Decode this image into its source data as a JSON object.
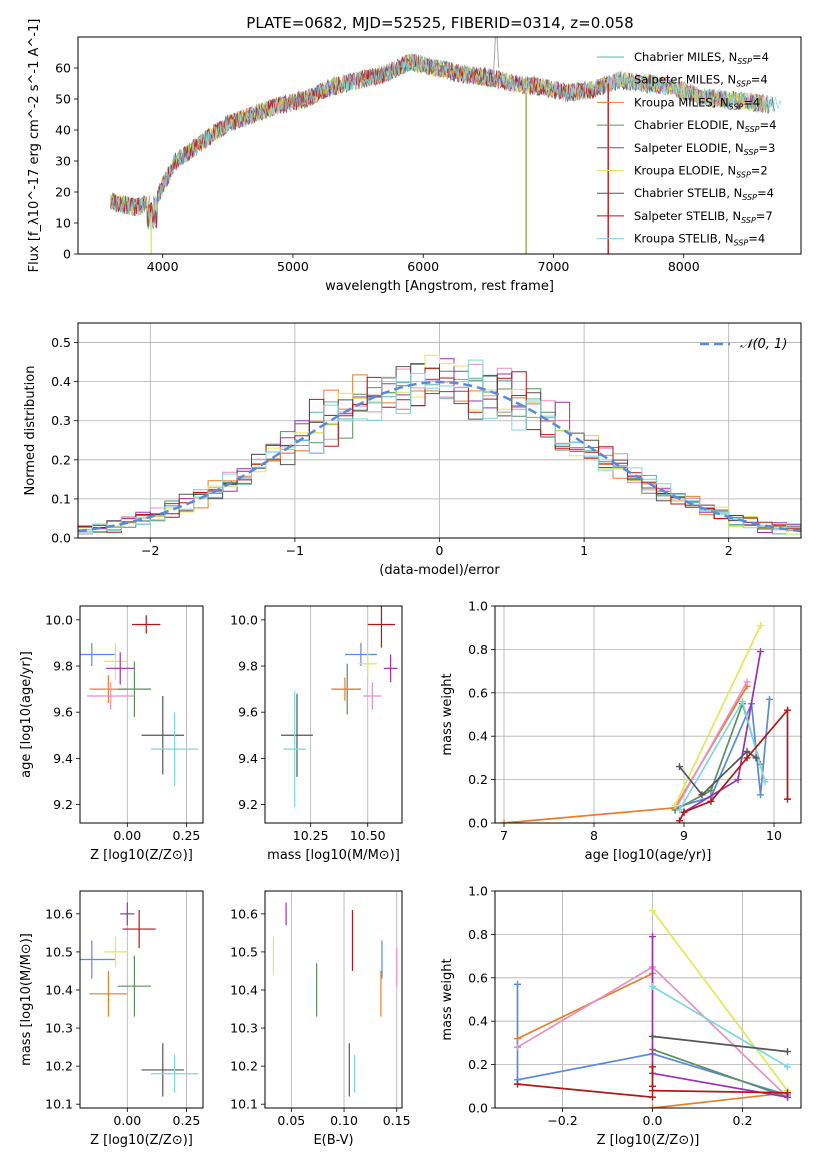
{
  "figure": {
    "title": "PLATE=0682, MJD=52525, FIBERID=0314, z=0.058"
  },
  "series": [
    {
      "name": "Chabrier MILES",
      "nssp": "4",
      "color": "#5ab4a4"
    },
    {
      "name": "Salpeter MILES",
      "nssp": "4",
      "color": "#e88fbf"
    },
    {
      "name": "Kroupa MILES",
      "nssp": "4",
      "color": "#e87e2c"
    },
    {
      "name": "Chabrier ELODIE",
      "nssp": "4",
      "color": "#5e8e5e"
    },
    {
      "name": "Salpeter ELODIE",
      "nssp": "3",
      "color": "#9a32b0"
    },
    {
      "name": "Kroupa ELODIE",
      "nssp": "2",
      "color": "#e0e85c"
    },
    {
      "name": "Chabrier STELIB",
      "nssp": "4",
      "color": "#555555"
    },
    {
      "name": "Salpeter STELIB",
      "nssp": "7",
      "color": "#b01818"
    },
    {
      "name": "Kroupa STELIB",
      "nssp": "4",
      "color": "#7fd6e0"
    }
  ],
  "extra_colors": {
    "blue": "#5b8ad9"
  },
  "chart_data": [
    {
      "id": "spectrum",
      "type": "line",
      "xlabel": "wavelength [Angstrom, rest frame]",
      "ylabel": "Flux [f_λ10^-17 erg cm^-2 s^-1 A^-1]",
      "xlim": [
        3350,
        8900
      ],
      "ylim": [
        0,
        70
      ],
      "xticks": [
        4000,
        5000,
        6000,
        7000,
        8000
      ],
      "yticks": [
        0,
        10,
        20,
        30,
        40,
        50,
        60
      ],
      "legend": "upper-right",
      "continuum": [
        [
          3600,
          17
        ],
        [
          3800,
          15
        ],
        [
          3950,
          18
        ],
        [
          4100,
          30
        ],
        [
          4300,
          36
        ],
        [
          4500,
          42
        ],
        [
          4700,
          45
        ],
        [
          4900,
          48
        ],
        [
          5100,
          50
        ],
        [
          5300,
          54
        ],
        [
          5500,
          56
        ],
        [
          5700,
          58
        ],
        [
          5900,
          62
        ],
        [
          6100,
          60
        ],
        [
          6300,
          58
        ],
        [
          6500,
          57
        ],
        [
          6700,
          55
        ],
        [
          6900,
          54
        ],
        [
          7100,
          52
        ],
        [
          7300,
          53
        ],
        [
          7500,
          56
        ],
        [
          7700,
          55
        ],
        [
          7900,
          54
        ],
        [
          8100,
          51
        ],
        [
          8300,
          50
        ],
        [
          8500,
          49
        ],
        [
          8700,
          48
        ]
      ]
    },
    {
      "id": "residuals",
      "type": "histogram",
      "xlabel": "(data-model)/error",
      "ylabel": "Normed distribution",
      "xlim": [
        -2.5,
        2.5
      ],
      "ylim": [
        0,
        0.55
      ],
      "xticks": [
        -2,
        -1,
        0,
        1,
        2
      ],
      "yticks": [
        0.0,
        0.1,
        0.2,
        0.3,
        0.4,
        0.5
      ],
      "bin_width": 0.1,
      "gaussian_label": "𝒩(0, 1)",
      "grid": true,
      "legend": "upper-right"
    },
    {
      "id": "age_vs_Z",
      "type": "scatter",
      "xlabel": "Z [log10(Z/Z⊙)]",
      "ylabel": "age [log10(age/yr)]",
      "xlim": [
        -0.2,
        0.32
      ],
      "ylim": [
        9.12,
        10.06
      ],
      "xticks": [
        0.0,
        0.25
      ],
      "yticks": [
        9.2,
        9.4,
        9.6,
        9.8,
        10.0
      ],
      "points": [
        {
          "x": -0.15,
          "y": 9.85,
          "xerr": 0.1,
          "yerr": 0.05,
          "series": "blue"
        },
        {
          "x": -0.08,
          "y": 9.7,
          "xerr": 0.08,
          "yerr": 0.06,
          "series": "Kroupa MILES"
        },
        {
          "x": -0.07,
          "y": 9.67,
          "xerr": 0.1,
          "yerr": 0.06,
          "series": "Salpeter MILES"
        },
        {
          "x": -0.05,
          "y": 9.82,
          "xerr": 0.05,
          "yerr": 0.08,
          "series": "Kroupa ELODIE"
        },
        {
          "x": -0.03,
          "y": 9.79,
          "xerr": 0.06,
          "yerr": 0.07,
          "series": "Salpeter ELODIE"
        },
        {
          "x": 0.03,
          "y": 9.7,
          "xerr": 0.07,
          "yerr": 0.12,
          "series": "Chabrier ELODIE"
        },
        {
          "x": 0.08,
          "y": 9.98,
          "xerr": 0.06,
          "yerr": 0.04,
          "series": "Salpeter STELIB"
        },
        {
          "x": 0.15,
          "y": 9.5,
          "xerr": 0.09,
          "yerr": 0.17,
          "series": "Chabrier STELIB"
        },
        {
          "x": 0.2,
          "y": 9.44,
          "xerr": 0.1,
          "yerr": 0.16,
          "series": "Kroupa STELIB"
        }
      ]
    },
    {
      "id": "age_vs_mass",
      "type": "scatter",
      "xlabel": "mass [log10(M/M⊙)]",
      "ylabel": "",
      "xlim": [
        10.05,
        10.65
      ],
      "ylim": [
        9.12,
        10.06
      ],
      "xticks": [
        10.25,
        10.5
      ],
      "yticks": [
        9.2,
        9.4,
        9.6,
        9.8,
        10.0
      ],
      "points": [
        {
          "x": 10.19,
          "y": 9.5,
          "xerr": 0.07,
          "yerr": 0.18,
          "series": "Chabrier STELIB"
        },
        {
          "x": 10.18,
          "y": 9.44,
          "xerr": 0.05,
          "yerr": 0.25,
          "series": "Kroupa STELIB"
        },
        {
          "x": 10.41,
          "y": 9.7,
          "xerr": 0.06,
          "yerr": 0.11,
          "series": "Chabrier ELODIE"
        },
        {
          "x": 10.4,
          "y": 9.7,
          "xerr": 0.06,
          "yerr": 0.05,
          "series": "Kroupa MILES"
        },
        {
          "x": 10.47,
          "y": 9.85,
          "xerr": 0.07,
          "yerr": 0.05,
          "series": "blue"
        },
        {
          "x": 10.5,
          "y": 9.81,
          "xerr": 0.04,
          "yerr": 0.05,
          "series": "Kroupa ELODIE"
        },
        {
          "x": 10.52,
          "y": 9.67,
          "xerr": 0.04,
          "yerr": 0.06,
          "series": "Salpeter MILES"
        },
        {
          "x": 10.56,
          "y": 9.98,
          "xerr": 0.06,
          "yerr": 0.1,
          "series": "Salpeter STELIB"
        },
        {
          "x": 10.6,
          "y": 9.79,
          "xerr": 0.03,
          "yerr": 0.06,
          "series": "Salpeter ELODIE"
        }
      ]
    },
    {
      "id": "massweight_vs_age",
      "type": "line",
      "xlabel": "age [log10(age/yr)]",
      "ylabel": "mass weight",
      "xlim": [
        6.9,
        10.3
      ],
      "ylim": [
        0,
        1.0
      ],
      "xticks": [
        7,
        8,
        9,
        10
      ],
      "yticks": [
        0.0,
        0.2,
        0.4,
        0.6,
        0.8,
        1.0
      ],
      "grid": true,
      "lines": [
        {
          "series": "blue",
          "pts": [
            [
              8.9,
              0.07
            ],
            [
              9.3,
              0.12
            ],
            [
              9.75,
              0.55
            ],
            [
              9.85,
              0.13
            ],
            [
              9.95,
              0.57
            ]
          ]
        },
        {
          "series": "Kroupa MILES",
          "pts": [
            [
              7.0,
              0.0
            ],
            [
              8.9,
              0.07
            ],
            [
              9.7,
              0.63
            ]
          ]
        },
        {
          "series": "Salpeter MILES",
          "pts": [
            [
              8.9,
              0.06
            ],
            [
              9.7,
              0.65
            ]
          ]
        },
        {
          "series": "Chabrier ELODIE",
          "pts": [
            [
              8.9,
              0.06
            ],
            [
              9.3,
              0.15
            ],
            [
              9.65,
              0.55
            ],
            [
              9.85,
              0.27
            ]
          ]
        },
        {
          "series": "Salpeter ELODIE",
          "pts": [
            [
              9.0,
              0.05
            ],
            [
              9.6,
              0.2
            ],
            [
              9.85,
              0.79
            ]
          ]
        },
        {
          "series": "Kroupa ELODIE",
          "pts": [
            [
              8.9,
              0.08
            ],
            [
              9.85,
              0.91
            ]
          ]
        },
        {
          "series": "Kroupa STELIB",
          "pts": [
            [
              8.95,
              0.06
            ],
            [
              9.65,
              0.56
            ],
            [
              9.9,
              0.19
            ]
          ]
        },
        {
          "series": "Chabrier STELIB",
          "pts": [
            [
              8.95,
              0.26
            ],
            [
              9.2,
              0.13
            ],
            [
              9.7,
              0.33
            ],
            [
              9.8,
              0.3
            ]
          ]
        },
        {
          "series": "Salpeter STELIB",
          "pts": [
            [
              8.95,
              0.01
            ],
            [
              9.0,
              0.05
            ],
            [
              9.3,
              0.1
            ],
            [
              9.7,
              0.3
            ],
            [
              10.15,
              0.52
            ],
            [
              10.15,
              0.11
            ]
          ]
        }
      ]
    },
    {
      "id": "mass_vs_Z",
      "type": "scatter",
      "xlabel": "Z [log10(Z/Z⊙)]",
      "ylabel": "mass [log10(M/M⊙)]",
      "xlim": [
        -0.2,
        0.32
      ],
      "ylim": [
        10.09,
        10.66
      ],
      "xticks": [
        0.0,
        0.25
      ],
      "yticks": [
        10.1,
        10.2,
        10.3,
        10.4,
        10.5,
        10.6
      ],
      "points": [
        {
          "x": -0.15,
          "y": 10.48,
          "xerr": 0.1,
          "yerr": 0.05,
          "series": "blue"
        },
        {
          "x": -0.08,
          "y": 10.39,
          "xerr": 0.08,
          "yerr": 0.06,
          "series": "Kroupa MILES"
        },
        {
          "x": -0.05,
          "y": 10.5,
          "xerr": 0.05,
          "yerr": 0.04,
          "series": "Kroupa ELODIE"
        },
        {
          "x": 0.03,
          "y": 10.41,
          "xerr": 0.07,
          "yerr": 0.08,
          "series": "Chabrier ELODIE"
        },
        {
          "x": 0.0,
          "y": 10.6,
          "xerr": 0.03,
          "yerr": 0.03,
          "series": "Salpeter ELODIE"
        },
        {
          "x": 0.05,
          "y": 10.56,
          "xerr": 0.07,
          "yerr": 0.05,
          "series": "Salpeter STELIB"
        },
        {
          "x": 0.15,
          "y": 10.19,
          "xerr": 0.09,
          "yerr": 0.07,
          "series": "Chabrier STELIB"
        },
        {
          "x": 0.2,
          "y": 10.18,
          "xerr": 0.1,
          "yerr": 0.05,
          "series": "Kroupa STELIB"
        }
      ]
    },
    {
      "id": "mass_vs_ebv",
      "type": "scatter",
      "xlabel": "E(B-V)",
      "ylabel": "",
      "xlim": [
        0.025,
        0.155
      ],
      "ylim": [
        10.09,
        10.66
      ],
      "xticks": [
        0.05,
        0.1,
        0.15
      ],
      "yticks": [
        10.1,
        10.2,
        10.3,
        10.4,
        10.5,
        10.6
      ],
      "points": [
        {
          "x": 0.033,
          "y": 10.49,
          "yerr": 0.05,
          "series": "Kroupa ELODIE"
        },
        {
          "x": 0.045,
          "y": 10.6,
          "yerr": 0.03,
          "series": "Salpeter ELODIE"
        },
        {
          "x": 0.074,
          "y": 10.4,
          "yerr": 0.07,
          "series": "Chabrier ELODIE"
        },
        {
          "x": 0.105,
          "y": 10.19,
          "yerr": 0.07,
          "series": "Chabrier STELIB"
        },
        {
          "x": 0.108,
          "y": 10.53,
          "yerr": 0.08,
          "series": "Salpeter STELIB"
        },
        {
          "x": 0.11,
          "y": 10.18,
          "yerr": 0.05,
          "series": "Kroupa STELIB"
        },
        {
          "x": 0.135,
          "y": 10.39,
          "yerr": 0.06,
          "series": "Kroupa MILES"
        },
        {
          "x": 0.136,
          "y": 10.48,
          "yerr": 0.05,
          "series": "blue"
        },
        {
          "x": 0.15,
          "y": 10.46,
          "yerr": 0.05,
          "series": "Salpeter MILES"
        }
      ]
    },
    {
      "id": "massweight_vs_Z",
      "type": "line",
      "xlabel": "Z [log10(Z/Z⊙)]",
      "ylabel": "mass weight",
      "xlim": [
        -0.35,
        0.33
      ],
      "ylim": [
        0,
        1.0
      ],
      "xticks": [
        -0.2,
        0.0,
        0.2
      ],
      "yticks": [
        0.0,
        0.2,
        0.4,
        0.6,
        0.8,
        1.0
      ],
      "grid": true,
      "lines": [
        {
          "series": "blue",
          "pts": [
            [
              -0.3,
              0.57
            ],
            [
              -0.3,
              0.13
            ],
            [
              0.0,
              0.25
            ],
            [
              0.3,
              0.06
            ]
          ]
        },
        {
          "series": "Kroupa MILES",
          "pts": [
            [
              -0.3,
              0.32
            ],
            [
              0.0,
              0.62
            ]
          ]
        },
        {
          "series": "Kroupa MILES",
          "pts": [
            [
              0.0,
              0.0
            ],
            [
              0.3,
              0.07
            ]
          ]
        },
        {
          "series": "Salpeter MILES",
          "pts": [
            [
              -0.3,
              0.28
            ],
            [
              0.0,
              0.65
            ],
            [
              0.3,
              0.05
            ]
          ]
        },
        {
          "series": "Chabrier ELODIE",
          "pts": [
            [
              0.0,
              0.27
            ],
            [
              0.3,
              0.05
            ]
          ]
        },
        {
          "series": "Salpeter ELODIE",
          "pts": [
            [
              0.0,
              0.79
            ],
            [
              0.0,
              0.16
            ],
            [
              0.3,
              0.05
            ]
          ]
        },
        {
          "series": "Kroupa ELODIE",
          "pts": [
            [
              0.0,
              0.91
            ],
            [
              0.3,
              0.08
            ]
          ]
        },
        {
          "series": "Kroupa STELIB",
          "pts": [
            [
              0.0,
              0.56
            ],
            [
              0.3,
              0.19
            ]
          ]
        },
        {
          "series": "Chabrier STELIB",
          "pts": [
            [
              0.0,
              0.33
            ],
            [
              0.3,
              0.26
            ]
          ]
        },
        {
          "series": "Salpeter STELIB",
          "pts": [
            [
              -0.3,
              0.11
            ],
            [
              0.0,
              0.05
            ]
          ]
        },
        {
          "series": "Salpeter STELIB",
          "pts": [
            [
              0.0,
              0.19
            ],
            [
              0.0,
              0.1
            ]
          ]
        },
        {
          "series": "Salpeter STELIB",
          "pts": [
            [
              0.0,
              0.08
            ],
            [
              0.3,
              0.07
            ]
          ]
        }
      ]
    }
  ]
}
